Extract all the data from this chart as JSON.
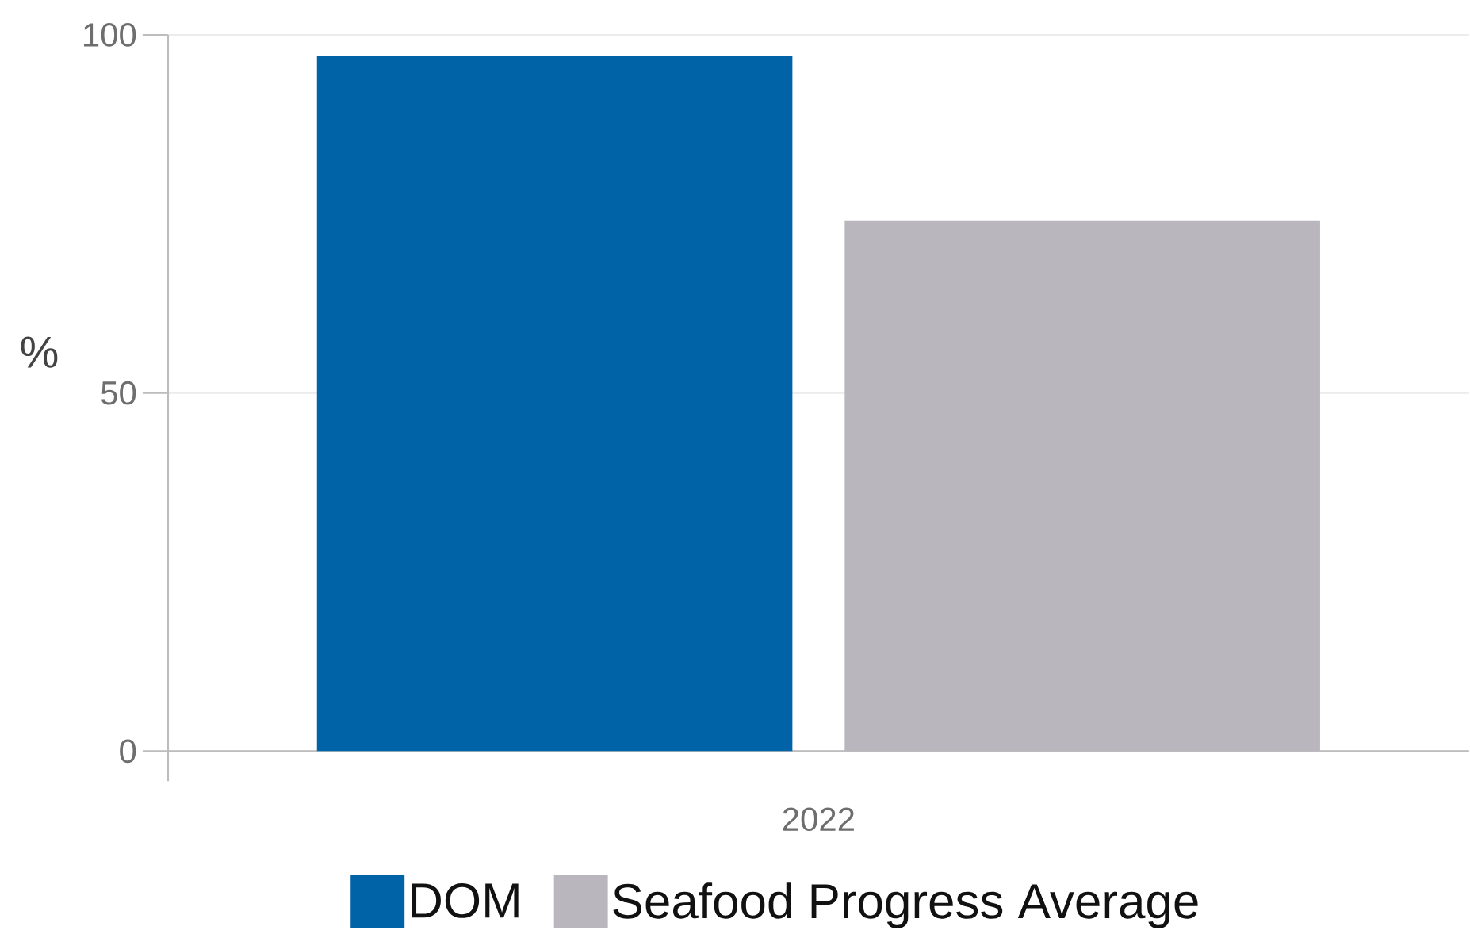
{
  "chart_data": {
    "type": "bar",
    "ylabel": "%",
    "categories": [
      "2022"
    ],
    "series": [
      {
        "name": "DOM",
        "color": "#0063a8",
        "values": [
          97
        ]
      },
      {
        "name": "Seafood Progress Average",
        "color": "#b9b7bd",
        "values": [
          74
        ]
      }
    ],
    "ylim": [
      0,
      100
    ],
    "yticks": [
      0,
      50,
      100
    ],
    "grid": "y",
    "legend": "bottom"
  }
}
